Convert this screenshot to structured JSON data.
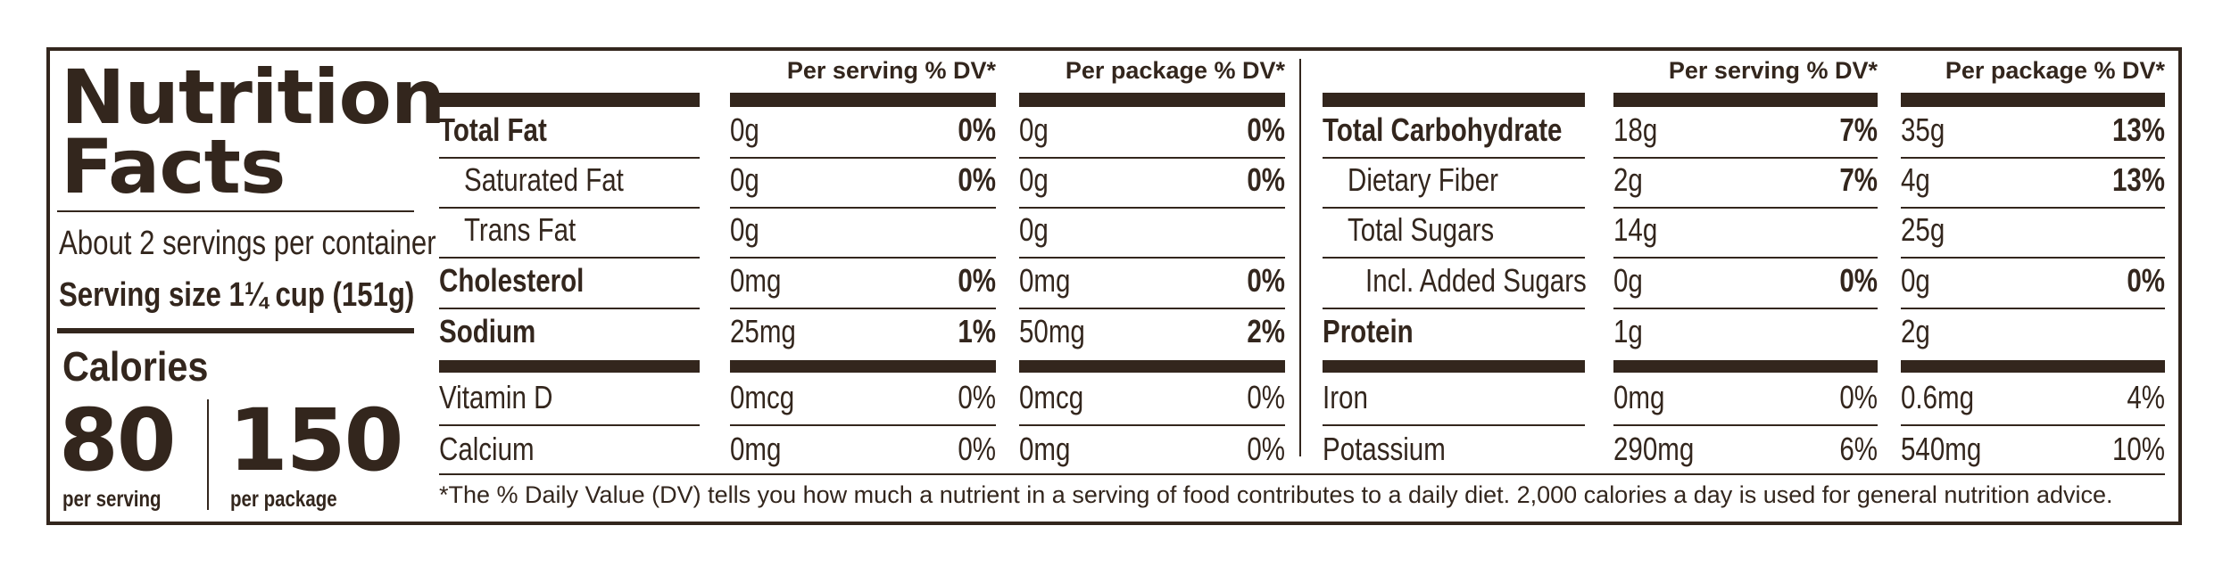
{
  "title_line1": "Nutrition",
  "title_line2": "Facts",
  "servings_per_container": "About 2 servings per container",
  "serving_size": "Serving size 1¼ cup (151g)",
  "calories_label": "Calories",
  "calories_per_serving": "80",
  "calories_per_package": "150",
  "per_serving_label": "per serving",
  "per_package_label": "per package",
  "headers": {
    "per_serving": "Per serving % DV*",
    "per_package": "Per package % DV*"
  },
  "left_rows": [
    {
      "name": "Total Fat",
      "serv": "0g",
      "serv_pct": "0%",
      "pkg": "0g",
      "pkg_pct": "0%"
    },
    {
      "name": "Saturated Fat",
      "serv": "0g",
      "serv_pct": "0%",
      "pkg": "0g",
      "pkg_pct": "0%"
    },
    {
      "name": "Trans Fat",
      "serv": "0g",
      "serv_pct": "",
      "pkg": "0g",
      "pkg_pct": ""
    },
    {
      "name": "Cholesterol",
      "serv": "0mg",
      "serv_pct": "0%",
      "pkg": "0mg",
      "pkg_pct": "0%"
    },
    {
      "name": "Sodium",
      "serv": "25mg",
      "serv_pct": "1%",
      "pkg": "50mg",
      "pkg_pct": "2%"
    },
    {
      "name": "Vitamin D",
      "serv": "0mcg",
      "serv_pct": "0%",
      "pkg": "0mcg",
      "pkg_pct": "0%"
    },
    {
      "name": "Calcium",
      "serv": "0mg",
      "serv_pct": "0%",
      "pkg": "0mg",
      "pkg_pct": "0%"
    }
  ],
  "right_rows": [
    {
      "name": "Total Carbohydrate",
      "serv": "18g",
      "serv_pct": "7%",
      "pkg": "35g",
      "pkg_pct": "13%"
    },
    {
      "name": "Dietary Fiber",
      "serv": "2g",
      "serv_pct": "7%",
      "pkg": "4g",
      "pkg_pct": "13%"
    },
    {
      "name": "Total Sugars",
      "serv": "14g",
      "serv_pct": "",
      "pkg": "25g",
      "pkg_pct": ""
    },
    {
      "name": "Incl. Added Sugars",
      "serv": "0g",
      "serv_pct": "0%",
      "pkg": "0g",
      "pkg_pct": "0%"
    },
    {
      "name": "Protein",
      "serv": "1g",
      "serv_pct": "",
      "pkg": "2g",
      "pkg_pct": ""
    },
    {
      "name": "Iron",
      "serv": "0mg",
      "serv_pct": "0%",
      "pkg": "0.6mg",
      "pkg_pct": "4%"
    },
    {
      "name": "Potassium",
      "serv": "290mg",
      "serv_pct": "6%",
      "pkg": "540mg",
      "pkg_pct": "10%"
    }
  ],
  "footnote": "*The % Daily Value (DV) tells you how much a nutrient in a serving of food contributes to a daily diet. 2,000 calories a day is used for general nutrition advice.",
  "colors": {
    "ink": "#33261d",
    "background": "#ffffff"
  }
}
